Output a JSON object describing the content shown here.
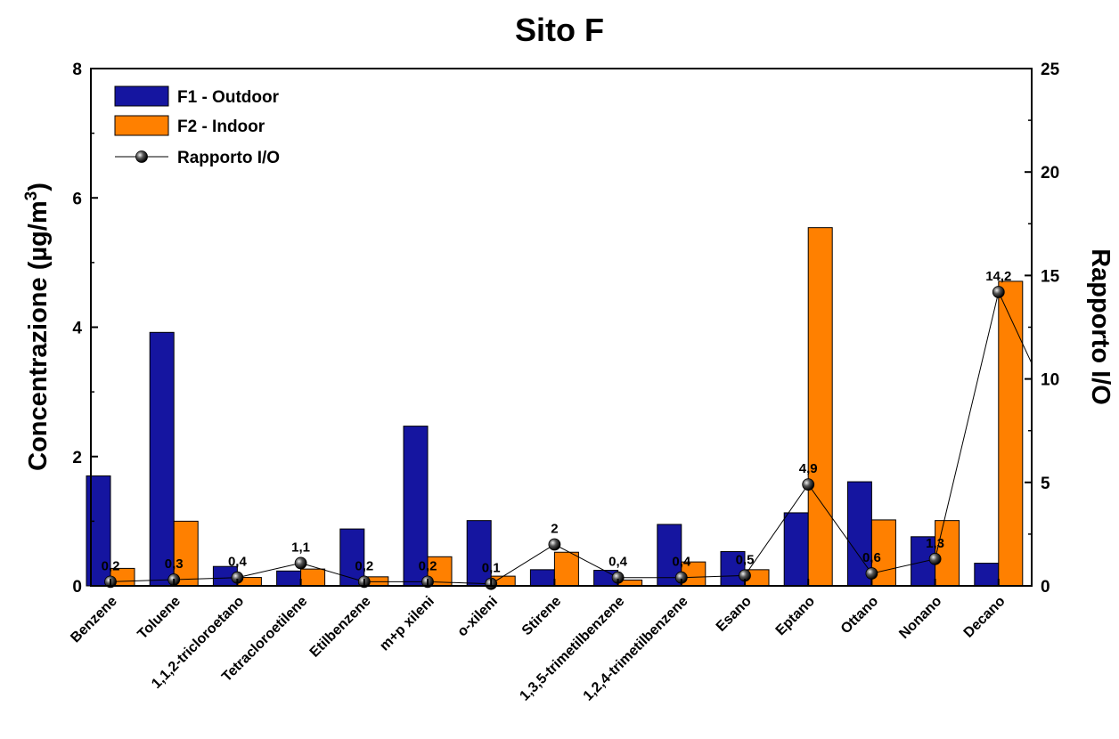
{
  "chart_data": {
    "type": "bar",
    "title": "Sito F",
    "ylabel": "Concentrazione (µg/m",
    "ylabel_sup": "3",
    "ylabel_close": ")",
    "y2label": "Rapporto I/O",
    "ylim": [
      0,
      8
    ],
    "y2lim": [
      0,
      25
    ],
    "yticks": [
      "0",
      "2",
      "4",
      "6",
      "8"
    ],
    "y2ticks": [
      "0",
      "5",
      "10",
      "15",
      "20",
      "25"
    ],
    "grid": false,
    "legend_position": "top-left",
    "categories": [
      "Benzene",
      "Toluene",
      "1,1,2-tricloroetano",
      "Tetracloroetilene",
      "Etilbenzene",
      "m+p xileni",
      "o-xileni",
      "Stirene",
      "1,3,5-trimetilbenzene",
      "1,2,4-trimetilbenzene",
      "Esano",
      "Eptano",
      "Ottano",
      "Nonano",
      "Decano"
    ],
    "series": [
      {
        "name": "F1 - Outdoor",
        "kind": "bar",
        "axis": "left",
        "color": "#1515a0",
        "values": [
          1.7,
          3.92,
          0.3,
          0.23,
          0.88,
          2.47,
          1.01,
          0.25,
          0.24,
          0.95,
          0.53,
          1.13,
          1.61,
          0.76,
          0.35
        ]
      },
      {
        "name": "F2 - Indoor",
        "kind": "bar",
        "axis": "left",
        "color": "#ff8000",
        "values": [
          0.27,
          1.0,
          0.13,
          0.26,
          0.14,
          0.45,
          0.15,
          0.52,
          0.09,
          0.37,
          0.25,
          5.54,
          1.02,
          1.01,
          4.71
        ]
      },
      {
        "name": "Rapporto I/O",
        "kind": "line",
        "axis": "right",
        "color": "#000000",
        "values": [
          0.2,
          0.3,
          0.4,
          1.1,
          0.2,
          0.2,
          0.1,
          2,
          0.4,
          0.4,
          0.5,
          4.9,
          0.6,
          1.3,
          14.2
        ],
        "labels": [
          "0,2",
          "0,3",
          "0,4",
          "1,1",
          "0,2",
          "0,2",
          "0,1",
          "2",
          "0,4",
          "0,4",
          "0,5",
          "4,9",
          "0,6",
          "1,3",
          "14,2"
        ],
        "trailing_value": 7.6
      }
    ]
  }
}
